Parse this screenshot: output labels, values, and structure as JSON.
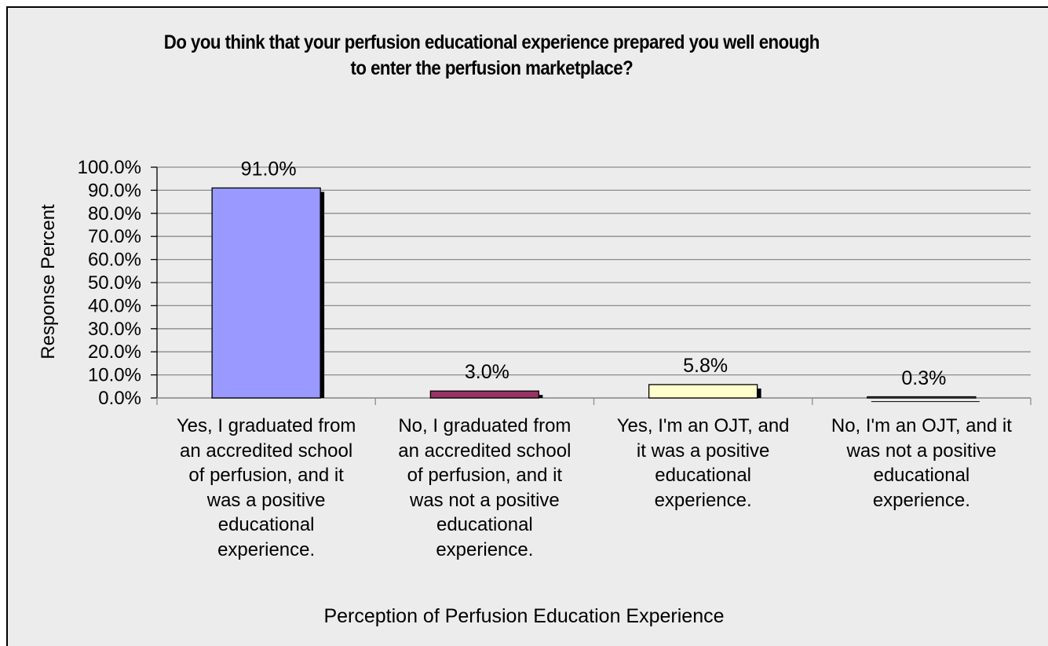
{
  "chart_data": {
    "type": "bar",
    "title": "Do you think that your perfusion educational experience prepared you well enough\nto enter the perfusion marketplace?",
    "xlabel": "Perception of Perfusion Education Experience",
    "ylabel": "Response Percent",
    "categories": [
      "Yes, I graduated from\nan accredited school\nof perfusion, and it\nwas a positive\neducational\nexperience.",
      "No, I graduated from\nan accredited school\nof perfusion, and it\nwas not a positive\neducational\nexperience.",
      "Yes, I'm an OJT, and\nit was a positive\neducational\nexperience.",
      "No, I'm an OJT, and it\nwas not a positive\neducational\nexperience."
    ],
    "values": [
      91.0,
      3.0,
      5.8,
      0.3
    ],
    "data_labels": [
      "91.0%",
      "3.0%",
      "5.8%",
      "0.3%"
    ],
    "bar_colors": [
      "#9999ff",
      "#993366",
      "#ffffcc",
      "#ccffff"
    ],
    "ylim": [
      0,
      100
    ],
    "y_ticks": [
      "0.0%",
      "10.0%",
      "20.0%",
      "30.0%",
      "40.0%",
      "50.0%",
      "60.0%",
      "70.0%",
      "80.0%",
      "90.0%",
      "100.0%"
    ],
    "grid": true,
    "legend": "none"
  }
}
